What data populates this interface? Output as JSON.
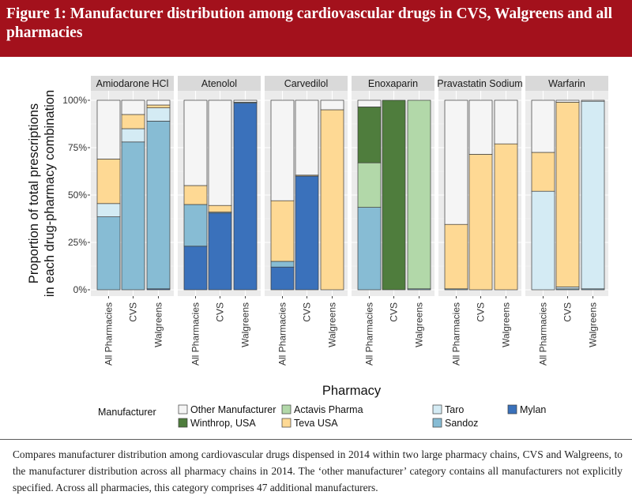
{
  "header": {
    "figure_label": "Figure 1:",
    "title": "Manufacturer distribution among cardiovascular drugs in CVS, Walgreens and all pharmacies"
  },
  "caption": "Compares manufacturer distribution among cardiovascular drugs dispensed in 2014 within two large pharmacy chains, CVS and Walgreens, to the manufacturer distribution across all pharmacy chains in 2014. The ‘other manufacturer’ category contains all manufacturers not explicitly specified. Across all pharmacies, this category comprises 47 additional manufacturers.",
  "colors": {
    "Other Manufacturer": "#f5f5f5",
    "Winthrop, USA": "#4f7d3d",
    "Actavis Pharma": "#b2d8a9",
    "Teva USA": "#fed994",
    "Taro": "#d4ebf4",
    "Sandoz": "#87bcd4",
    "Mylan": "#3a71bb",
    "panel_bg": "#ebebeb",
    "strip_bg": "#d9d9d9",
    "header_bg": "#a3111c"
  },
  "chart_data": {
    "type": "bar",
    "stacked": true,
    "facets": [
      {
        "name": "Amiodarone HCl",
        "bars": [
          {
            "pharmacy": "All Pharmacies",
            "Sandoz": 38.5,
            "Taro": 7,
            "Teva USA": 23.5,
            "Other Manufacturer": 31
          },
          {
            "pharmacy": "CVS",
            "Sandoz": 78,
            "Taro": 7,
            "Teva USA": 7.5,
            "Other Manufacturer": 7.5
          },
          {
            "pharmacy": "Walgreens",
            "Mylan": 0.5,
            "Sandoz": 88.5,
            "Taro": 7,
            "Teva USA": 1.5,
            "Other Manufacturer": 2.5
          }
        ]
      },
      {
        "name": "Atenolol",
        "bars": [
          {
            "pharmacy": "All Pharmacies",
            "Mylan": 23,
            "Sandoz": 22,
            "Teva USA": 10,
            "Other Manufacturer": 45
          },
          {
            "pharmacy": "CVS",
            "Mylan": 40.5,
            "Sandoz": 0.5,
            "Teva USA": 3.5,
            "Other Manufacturer": 55.5
          },
          {
            "pharmacy": "Walgreens",
            "Mylan": 98.5,
            "Sandoz": 0.5,
            "Other Manufacturer": 1
          }
        ]
      },
      {
        "name": "Carvedilol",
        "bars": [
          {
            "pharmacy": "All Pharmacies",
            "Mylan": 12,
            "Sandoz": 3,
            "Teva USA": 32,
            "Other Manufacturer": 53
          },
          {
            "pharmacy": "CVS",
            "Mylan": 60,
            "Teva USA": 0.5,
            "Other Manufacturer": 39.5
          },
          {
            "pharmacy": "Walgreens",
            "Teva USA": 95,
            "Other Manufacturer": 5
          }
        ]
      },
      {
        "name": "Enoxaparin",
        "bars": [
          {
            "pharmacy": "All Pharmacies",
            "Sandoz": 43.5,
            "Actavis Pharma": 23.5,
            "Winthrop, USA": 29.5,
            "Other Manufacturer": 3.5
          },
          {
            "pharmacy": "CVS",
            "Winthrop, USA": 100
          },
          {
            "pharmacy": "Walgreens",
            "Sandoz": 0.5,
            "Actavis Pharma": 99.5
          }
        ]
      },
      {
        "name": "Pravastatin Sodium",
        "bars": [
          {
            "pharmacy": "All Pharmacies",
            "Sandoz": 0.5,
            "Teva USA": 34,
            "Other Manufacturer": 65.5
          },
          {
            "pharmacy": "CVS",
            "Teva USA": 71.5,
            "Other Manufacturer": 28.5
          },
          {
            "pharmacy": "Walgreens",
            "Teva USA": 77,
            "Other Manufacturer": 23
          }
        ]
      },
      {
        "name": "Warfarin",
        "bars": [
          {
            "pharmacy": "All Pharmacies",
            "Taro": 52,
            "Teva USA": 20.5,
            "Other Manufacturer": 27.5
          },
          {
            "pharmacy": "CVS",
            "Sandoz": 0.5,
            "Taro": 1,
            "Teva USA": 97.5,
            "Other Manufacturer": 1
          },
          {
            "pharmacy": "Walgreens",
            "Taro": 99,
            "Sandoz": 0.5,
            "Other Manufacturer": 0.5
          }
        ]
      }
    ],
    "stack_order": [
      "Mylan",
      "Sandoz",
      "Taro",
      "Teva USA",
      "Actavis Pharma",
      "Winthrop, USA",
      "Other Manufacturer"
    ],
    "ylabel_line1": "Proportion of total prescriptions",
    "ylabel_line2": "in each drug-pharmacy combination",
    "xlabel": "Pharmacy",
    "ylim": [
      0,
      100
    ],
    "yticks": [
      0,
      25,
      50,
      75,
      100
    ],
    "ytick_labels": [
      "0%",
      "25%",
      "50%",
      "75%",
      "100%"
    ],
    "legend": {
      "title": "Manufacturer",
      "position": "bottom",
      "entries": [
        [
          "Other Manufacturer",
          "Winthrop, USA"
        ],
        [
          "Actavis Pharma",
          "Teva USA"
        ],
        [
          "Taro",
          "Sandoz"
        ],
        [
          "Mylan"
        ]
      ]
    },
    "grid": true
  }
}
